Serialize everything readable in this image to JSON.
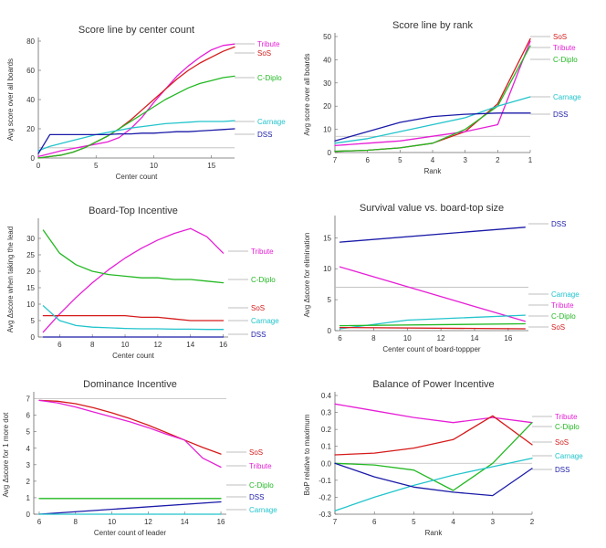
{
  "colors": {
    "Tribute": "#e61fd6",
    "SoS": "#d61a1a",
    "C-Diplo": "#22b822",
    "Carnage": "#22c4cc",
    "DSS": "#1a1aa8",
    "ref": "#bbbbbb"
  },
  "chart_data": [
    {
      "id": "p1",
      "type": "line",
      "title": "Score line by center count",
      "xlabel": "Center count",
      "ylabel": "Avg score over all boards",
      "xlim": [
        0,
        17
      ],
      "ylim": [
        0,
        80
      ],
      "xticks": [
        0,
        5,
        10,
        15
      ],
      "yticks": [
        0,
        20,
        40,
        60,
        80
      ],
      "xdir": "normal",
      "hline": 7,
      "legend": [
        "Tribute",
        "SoS",
        "C-Diplo",
        "Carnage",
        "DSS"
      ],
      "series": [
        {
          "name": "Tribute",
          "x": [
            0,
            1,
            2,
            3,
            4,
            5,
            6,
            7,
            8,
            9,
            10,
            11,
            12,
            13,
            14,
            15,
            16,
            17
          ],
          "values": [
            1,
            3,
            5,
            6.5,
            8,
            9.5,
            11,
            14,
            20,
            28,
            38,
            47,
            56,
            63,
            69,
            74,
            77,
            78
          ]
        },
        {
          "name": "SoS",
          "x": [
            0,
            1,
            2,
            3,
            4,
            5,
            6,
            7,
            8,
            9,
            10,
            11,
            12,
            13,
            14,
            15,
            16,
            17
          ],
          "values": [
            0,
            1,
            2,
            4,
            7,
            11,
            15,
            20,
            26,
            33,
            40,
            47,
            54,
            60,
            65,
            69,
            73,
            76
          ]
        },
        {
          "name": "C-Diplo",
          "x": [
            0,
            1,
            2,
            3,
            4,
            5,
            6,
            7,
            8,
            9,
            10,
            11,
            12,
            13,
            14,
            15,
            16,
            17
          ],
          "values": [
            0,
            1,
            2,
            4,
            7,
            11,
            15,
            20,
            25,
            30,
            35,
            40,
            44,
            48,
            51,
            53,
            55,
            56
          ]
        },
        {
          "name": "Carnage",
          "x": [
            0,
            1,
            2,
            3,
            4,
            5,
            6,
            7,
            8,
            9,
            10,
            11,
            12,
            13,
            14,
            15,
            16,
            17
          ],
          "values": [
            5,
            8,
            10,
            12,
            14,
            16,
            17.5,
            19,
            20.5,
            21.5,
            22.5,
            23.5,
            24,
            24.5,
            25,
            25,
            25,
            25.5
          ]
        },
        {
          "name": "DSS",
          "x": [
            0,
            1,
            2,
            3,
            4,
            5,
            6,
            7,
            8,
            9,
            10,
            11,
            12,
            13,
            14,
            15,
            16,
            17
          ],
          "values": [
            3,
            16,
            16,
            16,
            16,
            16,
            16,
            16.5,
            16.5,
            17,
            17,
            17.5,
            18,
            18,
            18.5,
            19,
            19.5,
            20
          ]
        }
      ]
    },
    {
      "id": "p2",
      "type": "line",
      "title": "Score line by rank",
      "xlabel": "Rank",
      "ylabel": "Avg score over all boards",
      "xlim": [
        7,
        1
      ],
      "ylim": [
        0,
        50
      ],
      "xticks": [
        7,
        6,
        5,
        4,
        3,
        2,
        1
      ],
      "yticks": [
        0,
        10,
        20,
        30,
        40,
        50
      ],
      "xdir": "reversed",
      "hline": 7,
      "legend": [
        "SoS",
        "Tribute",
        "C-Diplo",
        "Carnage",
        "DSS"
      ],
      "series": [
        {
          "name": "SoS",
          "x": [
            7,
            6,
            5,
            4,
            3,
            2,
            1
          ],
          "values": [
            0.5,
            1,
            2,
            4,
            9,
            21,
            49
          ]
        },
        {
          "name": "Tribute",
          "x": [
            7,
            6,
            5,
            4,
            3,
            2,
            1
          ],
          "values": [
            3,
            4,
            5,
            7,
            9,
            12,
            48
          ]
        },
        {
          "name": "C-Diplo",
          "x": [
            7,
            6,
            5,
            4,
            3,
            2,
            1
          ],
          "values": [
            0.5,
            1,
            2,
            4,
            10,
            20,
            46
          ]
        },
        {
          "name": "Carnage",
          "x": [
            7,
            6,
            5,
            4,
            3,
            2,
            1
          ],
          "values": [
            4,
            6,
            9,
            12,
            15,
            20,
            24
          ]
        },
        {
          "name": "DSS",
          "x": [
            7,
            6,
            5,
            4,
            3,
            2,
            1
          ],
          "values": [
            5,
            9,
            13,
            15.5,
            16.5,
            17,
            17
          ]
        }
      ]
    },
    {
      "id": "p3",
      "type": "line",
      "title": "Board-Top Incentive",
      "xlabel": "Center count",
      "ylabel": "Avg Δscore when taking the lead",
      "xlim": [
        4.7,
        16.3
      ],
      "ylim": [
        0,
        35
      ],
      "xticks": [
        6,
        8,
        10,
        12,
        14,
        16
      ],
      "yticks": [
        0,
        5,
        10,
        15,
        20,
        25,
        30
      ],
      "xdir": "normal",
      "hline": null,
      "legend": [
        "Tribute",
        "C-Diplo",
        "SoS",
        "Carnage",
        "DSS"
      ],
      "series": [
        {
          "name": "Tribute",
          "x": [
            5,
            6,
            7,
            8,
            9,
            10,
            11,
            12,
            13,
            14,
            15,
            16
          ],
          "values": [
            1.5,
            7,
            12,
            16.5,
            20.5,
            24,
            27,
            29.5,
            31.5,
            33,
            30.5,
            25.5
          ]
        },
        {
          "name": "C-Diplo",
          "x": [
            5,
            6,
            7,
            8,
            9,
            10,
            11,
            12,
            13,
            14,
            15,
            16
          ],
          "values": [
            32.5,
            25.5,
            22,
            20,
            19,
            18.5,
            18,
            18,
            17.5,
            17.5,
            17,
            16.5
          ]
        },
        {
          "name": "SoS",
          "x": [
            5,
            6,
            7,
            8,
            9,
            10,
            11,
            12,
            13,
            14,
            15,
            16
          ],
          "values": [
            6.5,
            6.5,
            6.5,
            6.5,
            6.5,
            6.5,
            6,
            6,
            5.5,
            5,
            5,
            5
          ]
        },
        {
          "name": "Carnage",
          "x": [
            5,
            6,
            7,
            8,
            9,
            10,
            11,
            12,
            13,
            14,
            15,
            16
          ],
          "values": [
            9.5,
            5,
            3.5,
            3,
            2.8,
            2.6,
            2.5,
            2.5,
            2.4,
            2.4,
            2.3,
            2.3
          ]
        },
        {
          "name": "DSS",
          "x": [
            5,
            6,
            7,
            8,
            9,
            10,
            11,
            12,
            13,
            14,
            15,
            16
          ],
          "values": [
            0,
            0,
            0,
            0,
            0,
            0,
            0,
            0,
            0,
            0,
            0,
            0
          ]
        }
      ]
    },
    {
      "id": "p4",
      "type": "line",
      "title": "Survival value vs. board-top size",
      "xlabel": "Center count of board-toppper",
      "ylabel": "Avg Δscore for elimination",
      "xlim": [
        5.7,
        17.2
      ],
      "ylim": [
        0,
        18
      ],
      "xticks": [
        6,
        8,
        10,
        12,
        14,
        16
      ],
      "yticks": [
        0,
        5,
        10,
        15
      ],
      "xdir": "normal",
      "hline": 7,
      "legend": [
        "DSS",
        "Carnage",
        "Tribute",
        "C-Diplo",
        "SoS"
      ],
      "series": [
        {
          "name": "DSS",
          "x": [
            6,
            17
          ],
          "values": [
            14.3,
            16.7
          ]
        },
        {
          "name": "Tribute",
          "x": [
            6,
            17
          ],
          "values": [
            10.3,
            1.5
          ]
        },
        {
          "name": "Carnage",
          "x": [
            6,
            10,
            17
          ],
          "values": [
            0.3,
            1.7,
            2.5
          ]
        },
        {
          "name": "C-Diplo",
          "x": [
            6,
            17
          ],
          "values": [
            0.8,
            1.1
          ]
        },
        {
          "name": "SoS",
          "x": [
            6,
            17
          ],
          "values": [
            0.5,
            0.3
          ]
        }
      ]
    },
    {
      "id": "p5",
      "type": "line",
      "title": "Dominance Incentive",
      "xlabel": "Center count of leader",
      "ylabel": "Avg Δscore for 1 more dot",
      "xlim": [
        5.7,
        16.3
      ],
      "ylim": [
        0,
        7.2
      ],
      "xticks": [
        6,
        8,
        10,
        12,
        14,
        16
      ],
      "yticks": [
        0,
        1,
        2,
        3,
        4,
        5,
        6,
        7
      ],
      "xdir": "normal",
      "hline": 7,
      "legend": [
        "SoS",
        "Tribute",
        "C-Diplo",
        "DSS",
        "Carnage"
      ],
      "series": [
        {
          "name": "SoS",
          "x": [
            6,
            7,
            8,
            9,
            10,
            11,
            12,
            13,
            14,
            15,
            16
          ],
          "values": [
            6.9,
            6.85,
            6.7,
            6.45,
            6.15,
            5.8,
            5.4,
            4.95,
            4.5,
            4.05,
            3.65
          ]
        },
        {
          "name": "Tribute",
          "x": [
            6,
            7,
            8,
            9,
            10,
            11,
            12,
            13,
            14,
            15,
            16
          ],
          "values": [
            6.9,
            6.75,
            6.5,
            6.2,
            5.9,
            5.6,
            5.25,
            4.85,
            4.5,
            3.4,
            2.85
          ]
        },
        {
          "name": "C-Diplo",
          "x": [
            6,
            16
          ],
          "values": [
            0.95,
            0.95
          ]
        },
        {
          "name": "DSS",
          "x": [
            6,
            16
          ],
          "values": [
            0,
            0.75
          ]
        },
        {
          "name": "Carnage",
          "x": [
            6,
            16
          ],
          "values": [
            0,
            0
          ]
        }
      ]
    },
    {
      "id": "p6",
      "type": "line",
      "title": "Balance of Power Incentive",
      "xlabel": "Rank",
      "ylabel": "BoP relative to maximum",
      "xlim": [
        7,
        2
      ],
      "ylim": [
        -0.3,
        0.4
      ],
      "xticks": [
        7,
        6,
        5,
        4,
        3,
        2
      ],
      "yticks": [
        -0.3,
        -0.2,
        -0.1,
        0.0,
        0.1,
        0.2,
        0.3,
        0.4
      ],
      "xdir": "reversed",
      "hline": 0,
      "legend": [
        "Tribute",
        "C-Diplo",
        "SoS",
        "Carnage",
        "DSS"
      ],
      "series": [
        {
          "name": "Tribute",
          "x": [
            7,
            6,
            5,
            4,
            3,
            2
          ],
          "values": [
            0.35,
            0.31,
            0.27,
            0.24,
            0.27,
            0.24
          ]
        },
        {
          "name": "SoS",
          "x": [
            7,
            6,
            5,
            4,
            3,
            2
          ],
          "values": [
            0.05,
            0.06,
            0.09,
            0.14,
            0.28,
            0.11
          ]
        },
        {
          "name": "C-Diplo",
          "x": [
            7,
            6,
            5,
            4,
            3,
            2
          ],
          "values": [
            0,
            -0.01,
            -0.04,
            -0.16,
            0,
            0.24
          ]
        },
        {
          "name": "Carnage",
          "x": [
            7,
            6,
            5,
            4,
            3,
            2
          ],
          "values": [
            -0.28,
            -0.2,
            -0.13,
            -0.07,
            -0.02,
            0.03
          ]
        },
        {
          "name": "DSS",
          "x": [
            7,
            6,
            5,
            4,
            3,
            2
          ],
          "values": [
            0,
            -0.08,
            -0.14,
            -0.17,
            -0.19,
            -0.03
          ]
        }
      ]
    }
  ]
}
